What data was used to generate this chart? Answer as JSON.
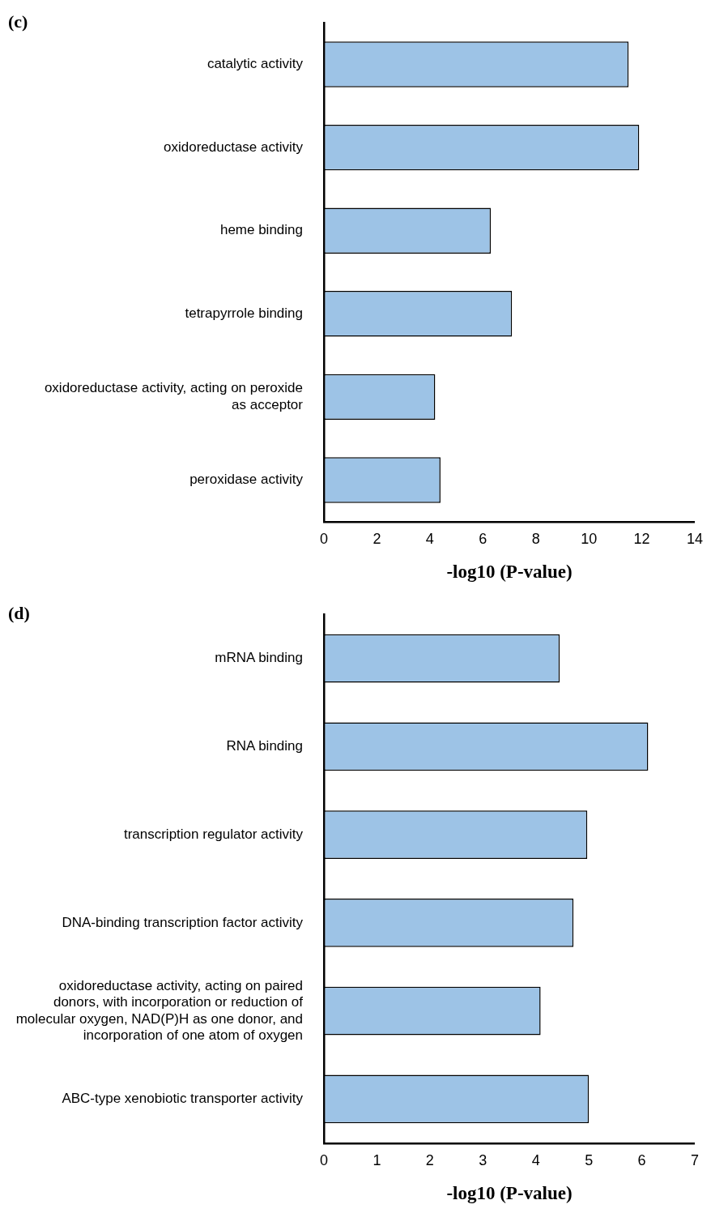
{
  "chart_data": [
    {
      "type": "bar",
      "title": "(c)",
      "orientation": "horizontal",
      "categories": [
        "catalytic activity",
        "oxidoreductase activity",
        "heme binding",
        "tetrapyrrole binding",
        "oxidoreductase activity, acting on peroxide as acceptor",
        "peroxidase activity"
      ],
      "series": [
        {
          "color": "#9dc3e6",
          "values": [
            11.5,
            11.9,
            6.3,
            7.1,
            4.2,
            4.4
          ]
        }
      ],
      "xlabel": "-log10 (P-value)",
      "xlim": [
        0,
        14
      ],
      "xticks": [
        0,
        2,
        4,
        6,
        8,
        10,
        12,
        14
      ],
      "grid": false,
      "legend": false
    },
    {
      "type": "bar",
      "title": "(d)",
      "orientation": "horizontal",
      "categories": [
        "mRNA binding",
        "RNA binding",
        "transcription regulator activity",
        "DNA-binding transcription factor activity",
        "oxidoreductase activity, acting on paired donors, with incorporation or reduction of molecular oxygen, NAD(P)H as one donor, and incorporation of one atom of oxygen",
        "ABC-type xenobiotic transporter activity"
      ],
      "series": [
        {
          "color": "#9dc3e6",
          "values": [
            4.45,
            6.12,
            4.97,
            4.71,
            4.09,
            5.0
          ]
        }
      ],
      "xlabel": "-log10 (P-value)",
      "xlim": [
        0,
        7
      ],
      "xticks": [
        0,
        1,
        2,
        3,
        4,
        5,
        6,
        7
      ],
      "grid": false,
      "legend": false
    }
  ]
}
